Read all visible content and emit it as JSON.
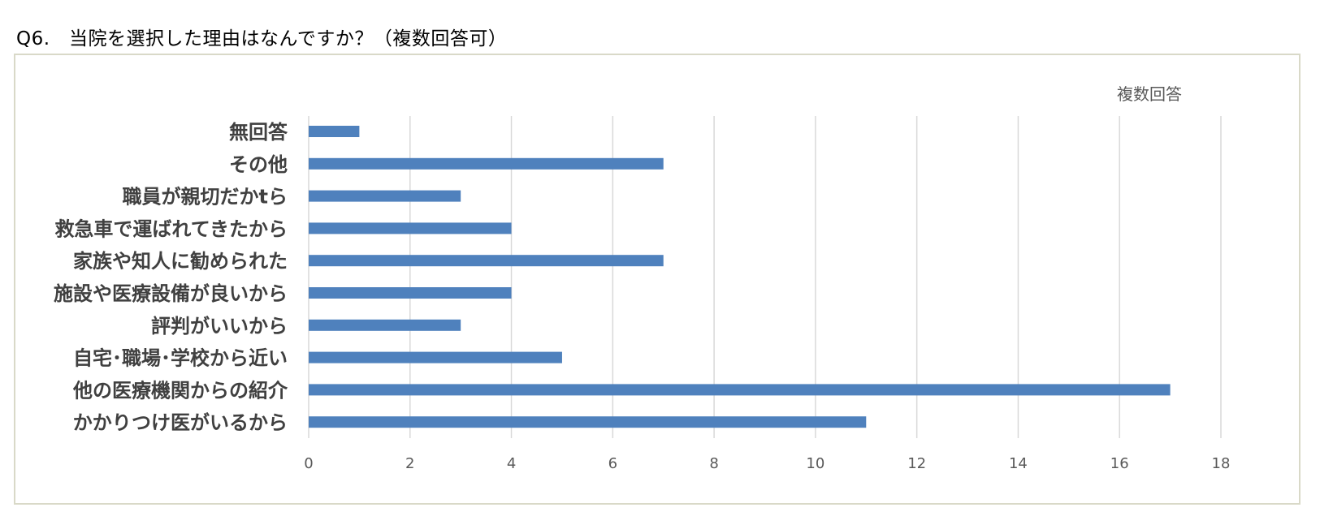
{
  "page": {
    "title": "Q6.　当院を選択した理由はなんですか？（複数回答可）"
  },
  "chart_data": {
    "type": "bar",
    "orientation": "horizontal",
    "title": "",
    "xlabel": "",
    "ylabel": "",
    "categories": [
      "無回答",
      "その他",
      "職員が親切だかtら",
      "救急車で運ばれてきたから",
      "家族や知人に勧められた",
      "施設や医療設備が良いから",
      "評判がいいから",
      "自宅･職場･学校から近い",
      "他の医療機関からの紹介",
      "かかりつけ医がいるから"
    ],
    "series": [
      {
        "name": "複数回答",
        "values": [
          1,
          7,
          3,
          4,
          7,
          4,
          3,
          5,
          17,
          11
        ],
        "color": "#4f81bd"
      }
    ],
    "xlim": [
      0,
      18
    ],
    "x_ticks": [
      "0",
      "2",
      "4",
      "6",
      "8",
      "10",
      "12",
      "14",
      "16",
      "18"
    ],
    "grid": true,
    "legend_position": "top-right",
    "colors": {
      "bar": "#4f81bd",
      "grid": "#d9d9d9",
      "frame": "#d9d9c8",
      "tick_text": "#595959"
    }
  }
}
